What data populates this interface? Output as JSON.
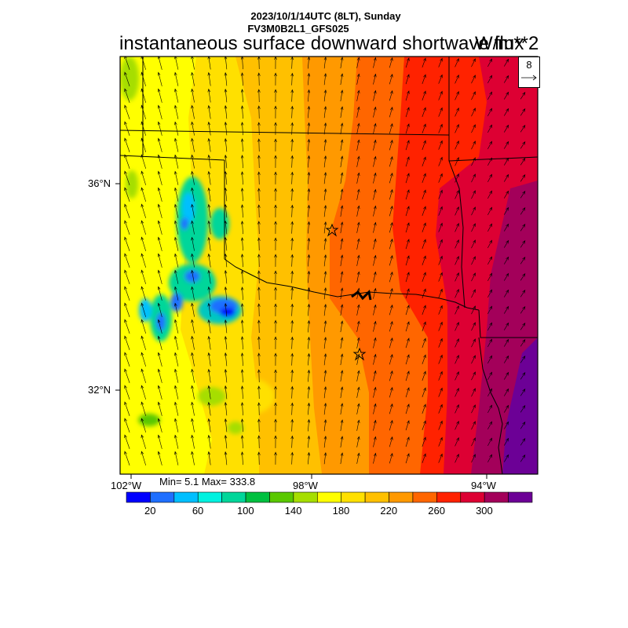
{
  "header": {
    "date_line": "2023/10/1/14UTC (8LT), Sunday",
    "model_line": "FV3M0B2L1_GFS025",
    "title": "instantaneous surface downward shortwave flux",
    "unit": "W/m**2"
  },
  "map": {
    "lat_labels": [
      "36°N",
      "32°N"
    ],
    "lon_labels": [
      "102°W",
      "98°W",
      "94°W"
    ],
    "markers": [
      "star",
      "star"
    ],
    "vector_legend": {
      "value": "8",
      "icon": "arrow-right-icon"
    }
  },
  "stats": {
    "text": "Min= 5.1 Max= 333.8"
  },
  "colorbar": {
    "colors": [
      "#0000ff",
      "#1f6fff",
      "#00bfff",
      "#00f2e0",
      "#00d69a",
      "#00c040",
      "#5ac800",
      "#a6de00",
      "#ffff00",
      "#ffe000",
      "#ffc000",
      "#ff9900",
      "#ff6600",
      "#ff2200",
      "#dd0033",
      "#a3005a",
      "#6c0096"
    ],
    "labels": [
      "20",
      "60",
      "100",
      "140",
      "180",
      "220",
      "260",
      "300"
    ]
  }
}
